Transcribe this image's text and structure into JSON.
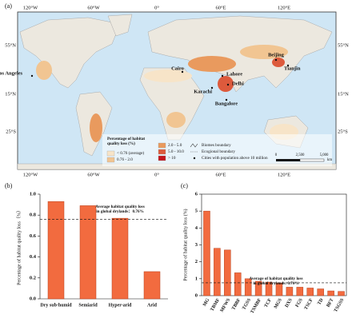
{
  "map": {
    "panel_label": "(a)",
    "lon_labels": [
      "120°W",
      "60°W",
      "0°",
      "60°E",
      "120°E"
    ],
    "lat_labels": [
      "55°N",
      "15°N",
      "25°S"
    ],
    "cities": [
      "Los Angeles",
      "Cairo",
      "Beijing",
      "Tianjin",
      "Lahore",
      "Delhi",
      "Karachi",
      "Bangalore"
    ],
    "legend": {
      "title": [
        "Percentage of habitat",
        "quality loss (%)"
      ],
      "classes": [
        {
          "label": "< 0.76 (average)",
          "color": "#f7e4c8"
        },
        {
          "label": "0.76 - 2.0",
          "color": "#f1c592"
        },
        {
          "label": "2.0 - 5.0",
          "color": "#e99a5e"
        },
        {
          "label": "5.0 - 10.0",
          "color": "#dd5a3c"
        },
        {
          "label": "> 10",
          "color": "#c3141c"
        }
      ],
      "lines": [
        "Biomes boundary",
        "Ecogional boundary",
        "Cities with population above 10 million"
      ],
      "scale": [
        "0",
        "2,500",
        "5,000",
        "km"
      ]
    }
  },
  "chart_data": [
    {
      "type": "bar",
      "panel_label": "(b)",
      "y_label": "Percentage of habitat quality loss（%）",
      "categories": [
        "Dry sub-humid",
        "Semiarid",
        "Hyper-arid",
        "Arid"
      ],
      "values": [
        0.93,
        0.89,
        0.77,
        0.26
      ],
      "color": "#f26b3f",
      "ylim": [
        0,
        1
      ],
      "yticks": [
        {
          "value": 0,
          "label": "0.0"
        },
        0.2,
        0.4,
        0.6,
        0.8,
        {
          "value": 1,
          "label": "1.0"
        }
      ],
      "reference_line": 0.76,
      "annotation": [
        "Average habitat quality loss",
        "in global drylands：0.76%"
      ]
    },
    {
      "type": "bar",
      "panel_label": "(c)",
      "y_label": "Percentage of habitat quality loss (%)",
      "categories": [
        "MG",
        "TBMF",
        "MFWS",
        "TBBF",
        "TGSS",
        "TSMBF",
        "TCF",
        "MGS",
        "DXS",
        "FGS",
        "TSCF",
        "TD",
        "BFT",
        "TSGSS"
      ],
      "values": [
        5.0,
        2.8,
        2.7,
        1.35,
        1.0,
        0.85,
        0.8,
        0.75,
        0.5,
        0.5,
        0.45,
        0.4,
        0.28,
        0.25
      ],
      "color": "#f26b3f",
      "ylim": [
        0,
        6
      ],
      "yticks": [
        0,
        1,
        2,
        3,
        4,
        5,
        6
      ],
      "reference_line": 0.76,
      "annotation": [
        "Average of habitat quality loss",
        "in global drylands: 0.76%"
      ]
    }
  ]
}
